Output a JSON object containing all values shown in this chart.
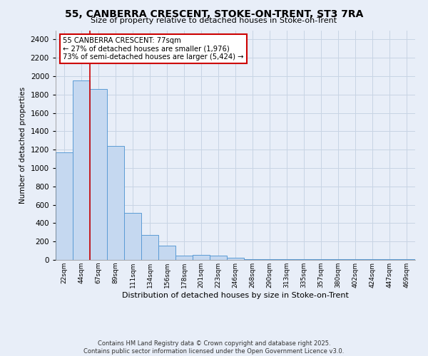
{
  "title": "55, CANBERRA CRESCENT, STOKE-ON-TRENT, ST3 7RA",
  "subtitle": "Size of property relative to detached houses in Stoke-on-Trent",
  "xlabel": "Distribution of detached houses by size in Stoke-on-Trent",
  "ylabel": "Number of detached properties",
  "bins": [
    "22sqm",
    "44sqm",
    "67sqm",
    "89sqm",
    "111sqm",
    "134sqm",
    "156sqm",
    "178sqm",
    "201sqm",
    "223sqm",
    "246sqm",
    "268sqm",
    "290sqm",
    "313sqm",
    "335sqm",
    "357sqm",
    "380sqm",
    "402sqm",
    "424sqm",
    "447sqm",
    "469sqm"
  ],
  "values": [
    1170,
    1950,
    1860,
    1240,
    510,
    270,
    155,
    50,
    55,
    50,
    20,
    10,
    5,
    5,
    5,
    5,
    5,
    5,
    5,
    5,
    5
  ],
  "bar_color": "#c5d8f0",
  "bar_edge_color": "#5b9bd5",
  "grid_color": "#c8d4e4",
  "bg_color": "#e8eef8",
  "vline_x": 1.5,
  "vline_color": "#cc0000",
  "annotation_text": "55 CANBERRA CRESCENT: 77sqm\n← 27% of detached houses are smaller (1,976)\n73% of semi-detached houses are larger (5,424) →",
  "annotation_box_color": "#ffffff",
  "annotation_box_edge": "#cc0000",
  "footnote1": "Contains HM Land Registry data © Crown copyright and database right 2025.",
  "footnote2": "Contains public sector information licensed under the Open Government Licence v3.0.",
  "ylim": [
    0,
    2500
  ],
  "yticks": [
    0,
    200,
    400,
    600,
    800,
    1000,
    1200,
    1400,
    1600,
    1800,
    2000,
    2200,
    2400
  ]
}
